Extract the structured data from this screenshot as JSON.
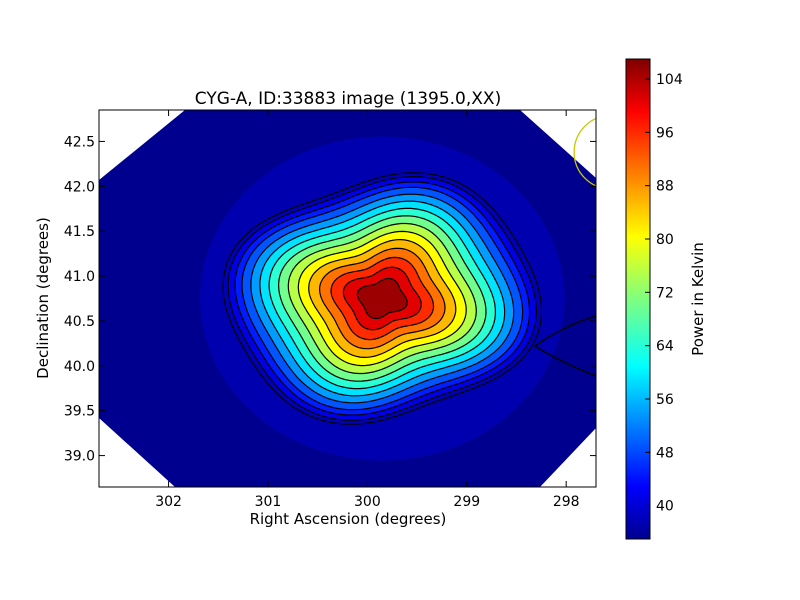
{
  "chart_data": {
    "type": "heatmap",
    "title": "CYG-A, ID:33883 image (1395.0,XX)",
    "xlabel": "Right Ascension (degrees)",
    "ylabel": "Declination (degrees)",
    "xlim": [
      302.7,
      297.7
    ],
    "ylim": [
      38.65,
      42.85
    ],
    "x_axis_inverted": true,
    "xticks": [
      302,
      301,
      300,
      299,
      298
    ],
    "yticks": [
      39.0,
      39.5,
      40.0,
      40.5,
      41.0,
      41.5,
      42.0,
      42.5
    ],
    "xtick_labels": [
      "302",
      "301",
      "300",
      "299",
      "298"
    ],
    "ytick_labels": [
      "39.0",
      "39.5",
      "40.0",
      "40.5",
      "41.0",
      "41.5",
      "42.0",
      "42.5"
    ],
    "colorbar": {
      "label": "Power in Kelvin",
      "range": [
        35,
        107
      ],
      "ticks": [
        40,
        48,
        56,
        64,
        72,
        80,
        88,
        96,
        104
      ],
      "tick_labels": [
        "40",
        "48",
        "56",
        "64",
        "72",
        "80",
        "88",
        "96",
        "104"
      ],
      "colormap": "jet"
    },
    "source": {
      "ra": 299.85,
      "dec": 40.75,
      "peak_kelvin": 107,
      "background_kelvin": 38,
      "contour_levels": [
        39,
        42,
        46,
        50,
        55,
        60,
        65,
        70,
        75,
        80,
        85,
        90,
        95,
        100,
        105
      ]
    },
    "beam_circle": {
      "ra": 297.55,
      "dec": 42.38,
      "radius_deg": 0.37,
      "color": "#c8c800"
    },
    "grid": false,
    "legend": "none"
  }
}
